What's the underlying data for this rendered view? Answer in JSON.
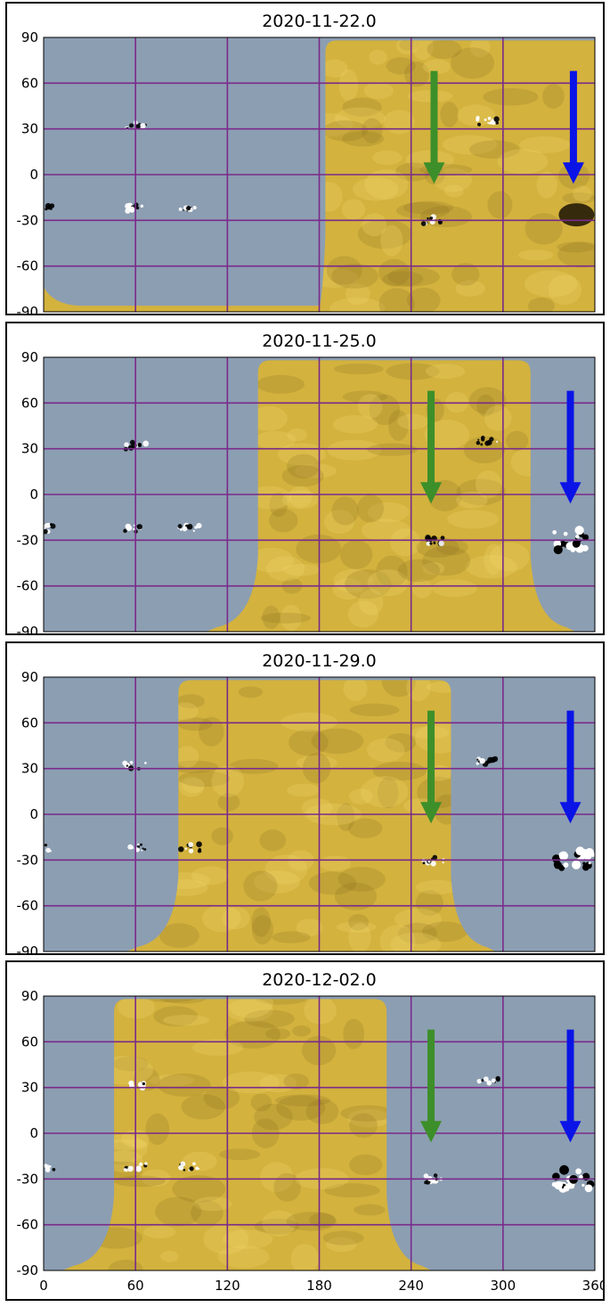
{
  "panels": [
    {
      "title": "2020-11-22.0",
      "farside_start": 184,
      "farside_end": 360,
      "green_arrow_lon": 255,
      "blue_arrow_lon": 346,
      "blue_feature_lon": 348,
      "blue_feature_lat": -24
    },
    {
      "title": "2020-11-25.0",
      "farside_start": 140,
      "farside_end": 318,
      "green_arrow_lon": 253,
      "blue_arrow_lon": 344,
      "blue_feature_lon": 346,
      "blue_feature_lat": -24
    },
    {
      "title": "2020-11-29.0",
      "farside_start": 88,
      "farside_end": 266,
      "green_arrow_lon": 253,
      "blue_arrow_lon": 344,
      "blue_feature_lon": 346,
      "blue_feature_lat": -24
    },
    {
      "title": "2020-12-02.0",
      "farside_start": 46,
      "farside_end": 224,
      "green_arrow_lon": 253,
      "blue_arrow_lon": 344,
      "blue_feature_lon": 346,
      "blue_feature_lat": -24
    }
  ],
  "axes": {
    "y_ticks": [
      "90",
      "60",
      "30",
      "0",
      "-30",
      "-60",
      "-90"
    ],
    "x_ticks": [
      "0",
      "60",
      "120",
      "180",
      "240",
      "300",
      "360"
    ],
    "xlim": [
      0,
      360
    ],
    "ylim": [
      -90,
      90
    ]
  },
  "colors": {
    "nearside": "#8c9eb2",
    "farside": "#d3b23e",
    "grid": "#7a2a8a",
    "green_arrow": "#3d8f2a",
    "blue_arrow": "#0a14e6"
  }
}
